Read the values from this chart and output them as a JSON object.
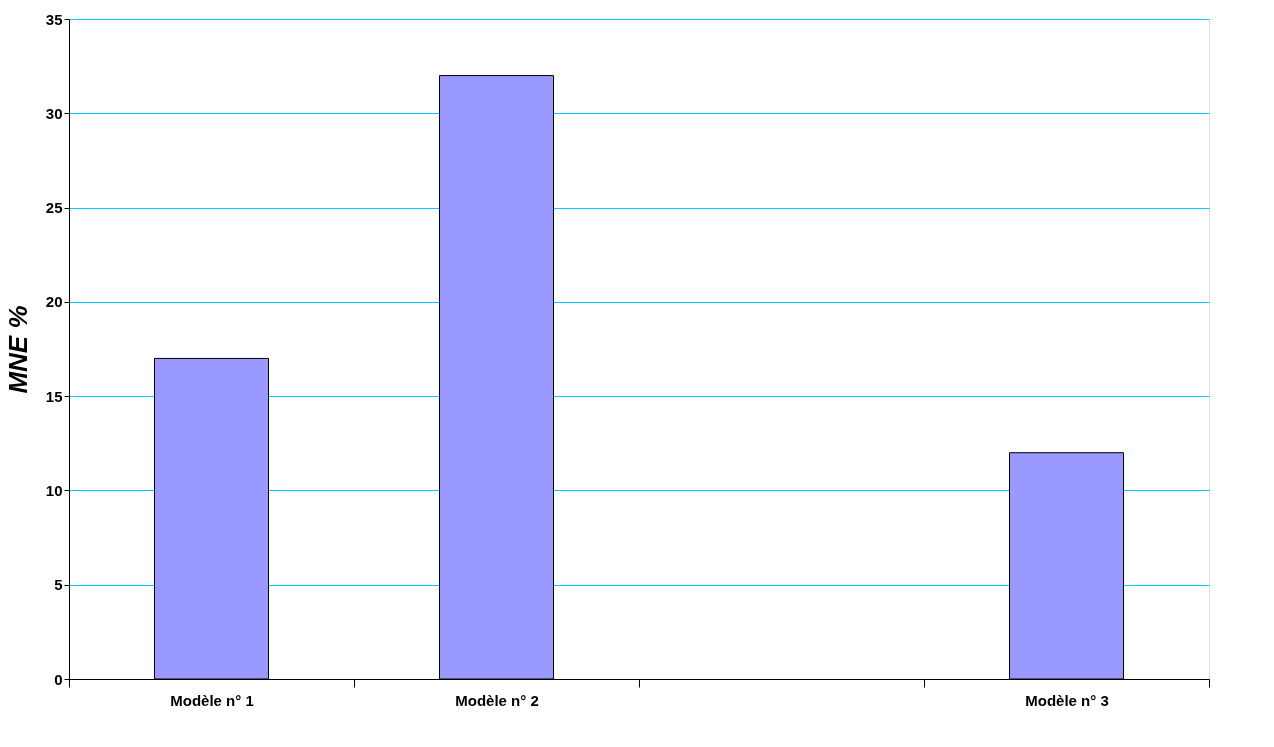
{
  "chart_data": {
    "type": "bar",
    "ylabel": "MNE %",
    "categories": [
      "Modèle n° 1",
      "Modèle n° 2",
      null,
      "Modèle n° 3"
    ],
    "values": [
      17,
      32,
      null,
      12
    ],
    "color": "#9999ff",
    "ylim": [
      0,
      35
    ],
    "yticks": [
      0,
      5,
      10,
      15,
      20,
      25,
      30,
      35
    ],
    "grid": "y"
  }
}
